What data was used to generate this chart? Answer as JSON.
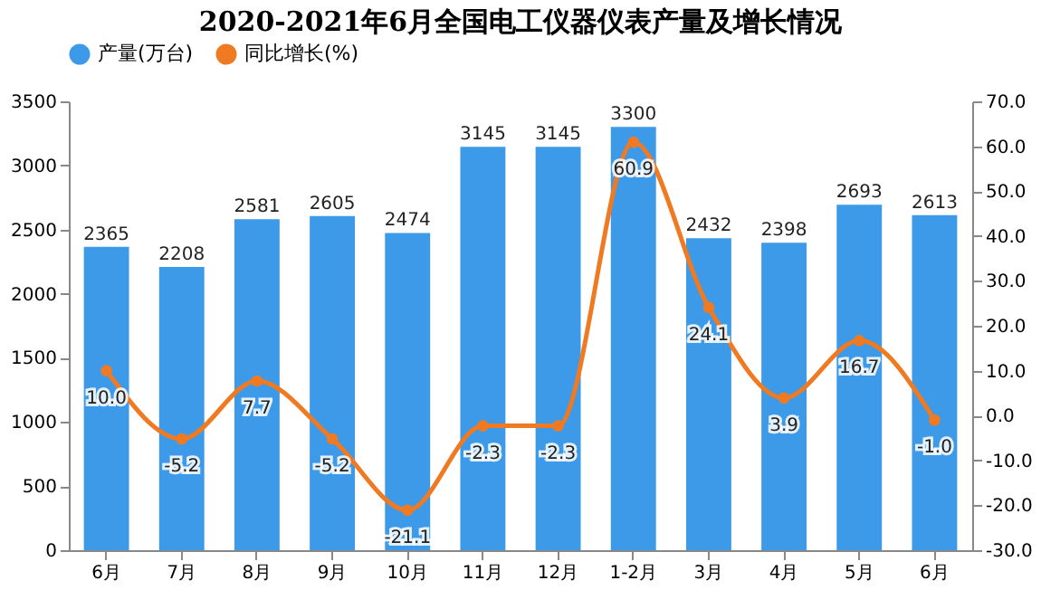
{
  "chart_data": {
    "type": "bar",
    "title": "2020-2021年6月全国电工仪器仪表产量及增长情况",
    "categories": [
      "6月",
      "7月",
      "8月",
      "9月",
      "10月",
      "11月",
      "12月",
      "1-2月",
      "3月",
      "4月",
      "5月",
      "6月"
    ],
    "series": [
      {
        "name": "产量(万台)",
        "color": "#3d9ae8",
        "values": [
          2365,
          2208,
          2581,
          2605,
          2474,
          3145,
          3145,
          3300,
          2432,
          2398,
          2693,
          2613
        ]
      },
      {
        "name": "同比增长(%)",
        "type": "line",
        "axis": "y2",
        "color": "#f07a22",
        "marker": "circle",
        "values": [
          10.0,
          -5.2,
          7.7,
          -5.2,
          -21.1,
          -2.3,
          -2.3,
          60.9,
          24.1,
          3.9,
          16.7,
          -1.0
        ],
        "value_labels": [
          "10.0",
          "-5.2",
          "7.7",
          "-5.2",
          "-21.1",
          "-2.3",
          "-2.3",
          "60.9",
          "24.1",
          "3.9",
          "16.7",
          "-1.0"
        ]
      }
    ],
    "ylim": [
      0,
      3500
    ],
    "yticks": [
      0,
      500,
      1000,
      1500,
      2000,
      2500,
      3000,
      3500
    ],
    "y2lim": [
      -30,
      70
    ],
    "y2ticks": [
      {
        "value": -30,
        "label": "-30.0"
      },
      {
        "value": -20,
        "label": "-20.0"
      },
      {
        "value": -10,
        "label": "-10.0"
      },
      {
        "value": 0,
        "label": "0.0"
      },
      {
        "value": 10,
        "label": "10.0"
      },
      {
        "value": 20,
        "label": "20.0"
      },
      {
        "value": 30,
        "label": "30.0"
      },
      {
        "value": 40,
        "label": "40.0"
      },
      {
        "value": 50,
        "label": "50.0"
      },
      {
        "value": 60,
        "label": "60.0"
      },
      {
        "value": 70,
        "label": "70.0"
      }
    ],
    "data_labels": true,
    "legend": "top",
    "grid": false
  }
}
